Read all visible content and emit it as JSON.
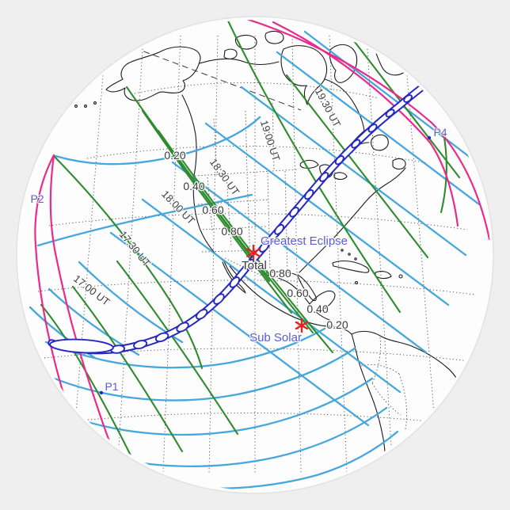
{
  "sticker": {
    "background_color": "#efefef",
    "disk_color": "#fdfdfd"
  },
  "map": {
    "annotations": {
      "greatest_eclipse": "Greatest Eclipse",
      "total": "Total",
      "sub_solar": "Sub Solar"
    },
    "contact_points": [
      {
        "id": "p1",
        "label": "P1"
      },
      {
        "id": "p2",
        "label": "P2"
      },
      {
        "id": "p4",
        "label": "P4"
      }
    ],
    "time_contours": [
      {
        "label": "19:30 UT"
      },
      {
        "label": "19:00 UT"
      },
      {
        "label": "18:30 UT"
      },
      {
        "label": "18:00 UT"
      },
      {
        "label": "17:30 UT"
      },
      {
        "label": "17:00 UT"
      }
    ],
    "magnitude_contours_north": [
      "0.20",
      "0.40",
      "0.60",
      "0.80"
    ],
    "magnitude_contours_south": [
      "0.80",
      "0.60",
      "0.40",
      "0.20"
    ],
    "colors": {
      "time_contour": "#45a7dc",
      "magnitude_contour": "#2e8b2e",
      "penumbral_limit": "#ec2a8c",
      "umbral_path": "#2626c0",
      "label_blue": "#5b5bd6",
      "label_gray": "#3a3a3a",
      "marker_red": "#e82020"
    }
  }
}
